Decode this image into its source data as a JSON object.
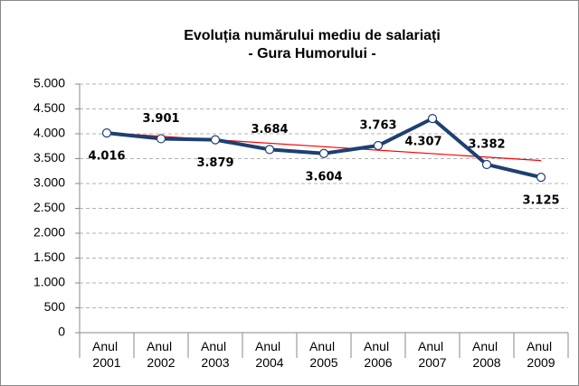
{
  "chart_data": {
    "type": "line",
    "title": "Evoluția numărului mediu de salariați",
    "subtitle": "- Gura Humorului -",
    "categories": [
      "Anul 2001",
      "Anul 2002",
      "Anul 2003",
      "Anul 2004",
      "Anul 2005",
      "Anul 2006",
      "Anul 2007",
      "Anul 2008",
      "Anul 2009"
    ],
    "series": [
      {
        "color": "#1f3f73",
        "values": [
          4016,
          3901,
          3879,
          3684,
          3604,
          3763,
          4307,
          3382,
          3125
        ],
        "value_labels": [
          "4.016",
          "3.901",
          "3.879",
          "3.684",
          "3.604",
          "3.763",
          "4.307",
          "3.382",
          "3.125"
        ]
      }
    ],
    "trendline": {
      "type": "linear",
      "color": "#ff0000"
    },
    "ylim": [
      0,
      5000
    ],
    "yticks": [
      0,
      500,
      {
        "value": 1000,
        "label": "1.000"
      },
      {
        "value": 1500,
        "label": "1.500"
      },
      {
        "value": 2000,
        "label": "2.000"
      },
      {
        "value": 2500,
        "label": "2.500"
      },
      {
        "value": 3000,
        "label": "3.000"
      },
      {
        "value": 3500,
        "label": "3.500"
      },
      {
        "value": 4000,
        "label": "4.000"
      },
      {
        "value": 4500,
        "label": "4.500"
      },
      {
        "value": 5000,
        "label": "5.000"
      }
    ],
    "grid": true
  }
}
